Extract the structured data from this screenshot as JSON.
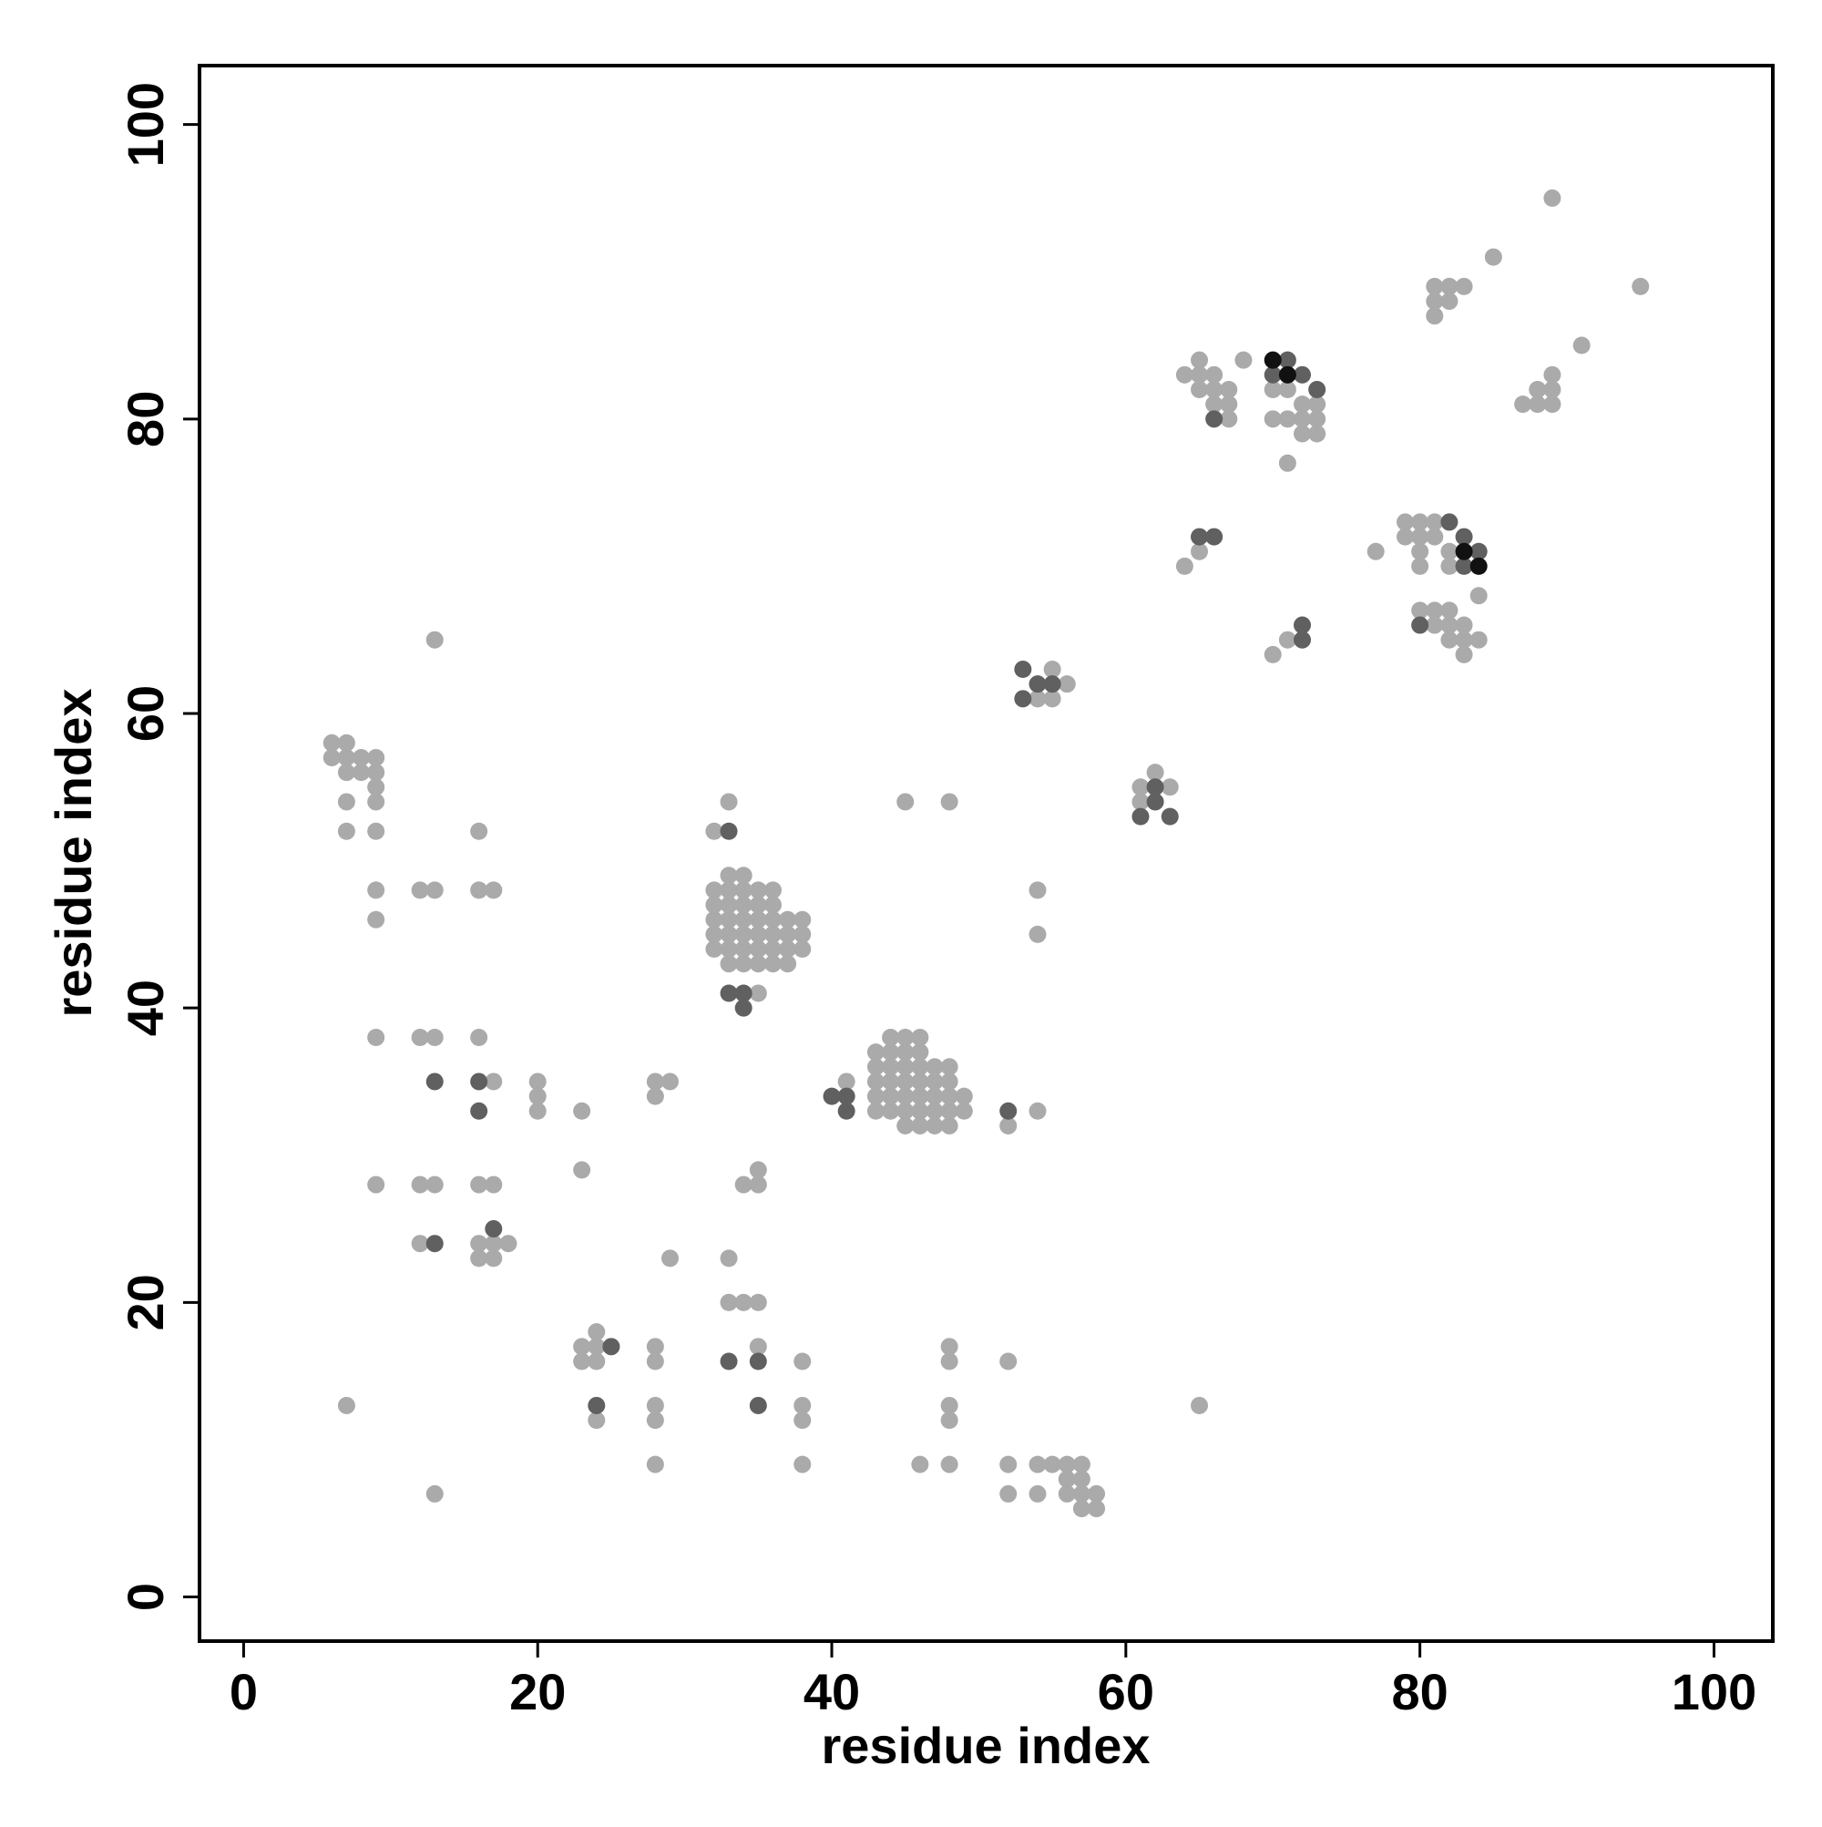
{
  "chart_data": {
    "type": "scatter",
    "xlabel": "residue index",
    "ylabel": "residue index",
    "xlim": [
      -3,
      104
    ],
    "ylim": [
      -3,
      104
    ],
    "xticks": [
      0,
      20,
      40,
      60,
      80,
      100
    ],
    "yticks": [
      0,
      20,
      40,
      60,
      80,
      100
    ],
    "series": [
      {
        "color": "#aaaaaa",
        "x": [
          89,
          85,
          95,
          91,
          81,
          82,
          83,
          81,
          82,
          81,
          88,
          89,
          89,
          87,
          88,
          89,
          65,
          68,
          64,
          65,
          66,
          65,
          66,
          67,
          66,
          67,
          67,
          70,
          71,
          72,
          73,
          72,
          73,
          70,
          71,
          72,
          73,
          71,
          64,
          65,
          77,
          79,
          80,
          81,
          79,
          80,
          81,
          80,
          82,
          80,
          82,
          84,
          80,
          81,
          82,
          81,
          82,
          83,
          82,
          83,
          84,
          83,
          70,
          71,
          55,
          56,
          54,
          55,
          61,
          62,
          63,
          61,
          6,
          7,
          6,
          7,
          8,
          9,
          7,
          8,
          9,
          9,
          7,
          9,
          7,
          9,
          9,
          9,
          9,
          9,
          7,
          13,
          12,
          13,
          16,
          16,
          17,
          12,
          13,
          16,
          17,
          20,
          20,
          20,
          23,
          23,
          12,
          13,
          16,
          17,
          12,
          16,
          17,
          18,
          16,
          17,
          13,
          28,
          29,
          28,
          29,
          33,
          33,
          34,
          35,
          35,
          35,
          34,
          23,
          24,
          23,
          24,
          24,
          24,
          28,
          28,
          28,
          28,
          28,
          35,
          38,
          38,
          38,
          38,
          46,
          48,
          48,
          48,
          48,
          48,
          52,
          52,
          52,
          54,
          54,
          55,
          56,
          57,
          56,
          57,
          56,
          57,
          58,
          57,
          58,
          65,
          32,
          32,
          32,
          32,
          32,
          33,
          33,
          33,
          33,
          33,
          33,
          33,
          34,
          34,
          34,
          34,
          34,
          34,
          34,
          35,
          35,
          35,
          35,
          35,
          35,
          36,
          36,
          36,
          36,
          36,
          36,
          37,
          37,
          37,
          37,
          38,
          38,
          38,
          32,
          33,
          35,
          43,
          43,
          43,
          43,
          43,
          44,
          44,
          44,
          44,
          44,
          44,
          45,
          45,
          45,
          45,
          45,
          45,
          45,
          46,
          46,
          46,
          46,
          46,
          46,
          46,
          47,
          47,
          47,
          47,
          47,
          48,
          48,
          48,
          48,
          48,
          49,
          49,
          41,
          45,
          48,
          54,
          54,
          54,
          52
        ],
        "y": [
          95,
          91,
          89,
          85,
          89,
          89,
          89,
          88,
          88,
          87,
          82,
          83,
          82,
          81,
          81,
          81,
          84,
          84,
          83,
          83,
          83,
          82,
          82,
          82,
          81,
          81,
          80,
          82,
          82,
          81,
          81,
          80,
          80,
          80,
          80,
          79,
          79,
          77,
          70,
          71,
          71,
          73,
          73,
          73,
          72,
          72,
          72,
          71,
          71,
          70,
          70,
          68,
          67,
          67,
          67,
          66,
          66,
          66,
          65,
          65,
          65,
          64,
          64,
          65,
          63,
          62,
          61,
          61,
          55,
          56,
          55,
          54,
          58,
          58,
          57,
          57,
          57,
          57,
          56,
          56,
          56,
          55,
          54,
          54,
          52,
          52,
          48,
          46,
          38,
          28,
          13,
          65,
          48,
          48,
          52,
          48,
          48,
          38,
          38,
          38,
          35,
          35,
          34,
          33,
          33,
          29,
          28,
          28,
          28,
          28,
          24,
          24,
          24,
          24,
          23,
          23,
          7,
          35,
          35,
          34,
          23,
          23,
          20,
          20,
          20,
          29,
          28,
          28,
          17,
          17,
          16,
          16,
          18,
          12,
          17,
          16,
          13,
          12,
          9,
          17,
          16,
          13,
          12,
          9,
          9,
          9,
          17,
          16,
          13,
          12,
          16,
          9,
          7,
          9,
          7,
          9,
          9,
          9,
          8,
          8,
          7,
          7,
          7,
          6,
          6,
          13,
          44,
          45,
          46,
          47,
          48,
          43,
          44,
          45,
          46,
          47,
          48,
          49,
          43,
          44,
          45,
          46,
          47,
          48,
          49,
          43,
          44,
          45,
          46,
          47,
          48,
          43,
          44,
          45,
          46,
          47,
          48,
          43,
          44,
          45,
          46,
          44,
          45,
          46,
          52,
          54,
          41,
          33,
          34,
          35,
          36,
          37,
          33,
          34,
          35,
          36,
          37,
          38,
          32,
          33,
          34,
          35,
          36,
          37,
          38,
          32,
          33,
          34,
          35,
          36,
          37,
          38,
          32,
          33,
          34,
          35,
          36,
          32,
          33,
          34,
          35,
          36,
          33,
          34,
          35,
          54,
          54,
          48,
          45,
          33,
          32
        ]
      },
      {
        "color": "#606060",
        "x": [
          71,
          70,
          72,
          73,
          66,
          65,
          66,
          82,
          83,
          80,
          83,
          84,
          72,
          72,
          53,
          54,
          55,
          53,
          62,
          62,
          61,
          63,
          13,
          16,
          16,
          13,
          17,
          33,
          33,
          34,
          34,
          25,
          24,
          33,
          35,
          35,
          40,
          41,
          41,
          52
        ],
        "y": [
          84,
          83,
          83,
          82,
          80,
          72,
          72,
          73,
          72,
          66,
          70,
          71,
          66,
          65,
          63,
          62,
          62,
          61,
          55,
          54,
          53,
          53,
          35,
          35,
          33,
          24,
          25,
          52,
          41,
          41,
          40,
          17,
          13,
          16,
          16,
          13,
          34,
          34,
          33,
          33
        ]
      },
      {
        "color": "#111111",
        "x": [
          70,
          71,
          83,
          84
        ],
        "y": [
          84,
          83,
          71,
          70
        ]
      }
    ]
  }
}
